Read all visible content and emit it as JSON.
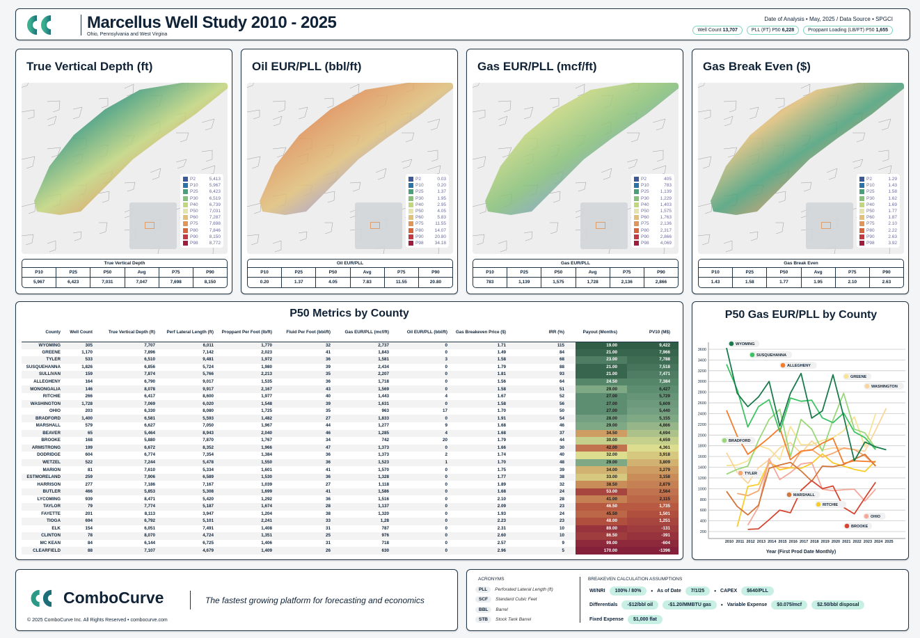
{
  "header": {
    "title": "Marcellus Well Study 2010 - 2025",
    "subtitle": "Ohio, Pennsylvania and West Virgina",
    "meta": "Date of Analysis • May, 2025 / Data Source • SPGCI",
    "pills": [
      {
        "label": "Well Count",
        "value": "13,707"
      },
      {
        "label": "PLL (FT)  P50",
        "value": "6,228"
      },
      {
        "label": "Proppant Loading (LB/FT)  P50",
        "value": "1,655"
      }
    ]
  },
  "legend_colors": [
    "#3d5a98",
    "#2a74a8",
    "#4aa07a",
    "#86c07a",
    "#c2d67e",
    "#e4e3ae",
    "#e0c07a",
    "#e0955a",
    "#d7653c",
    "#c03a44",
    "#a01c3c"
  ],
  "legend_labels": [
    "P2",
    "P10",
    "P25",
    "P30",
    "P40",
    "P50",
    "P60",
    "P75",
    "P80",
    "P90",
    "P98"
  ],
  "stat_headers": [
    "P10",
    "P25",
    "P50",
    "Avg",
    "P75",
    "P90"
  ],
  "maps": [
    {
      "title": "True Vertical Depth (ft)",
      "stats_title": "True Vertical Depth",
      "legend": [
        "5,413",
        "5,967",
        "6,423",
        "6,519",
        "6,739",
        "7,031",
        "7,287",
        "7,698",
        "7,846",
        "8,150",
        "8,772"
      ],
      "stats": [
        "5,967",
        "6,423",
        "7,031",
        "7,047",
        "7,698",
        "8,150"
      ]
    },
    {
      "title": "Oil EUR/PLL (bbl/ft)",
      "stats_title": "Oil EUR/PLL",
      "legend": [
        "0.03",
        "0.20",
        "1.37",
        "1.95",
        "2.95",
        "4.05",
        "5.83",
        "11.55",
        "14.07",
        "20.80",
        "34.18"
      ],
      "stats": [
        "0.20",
        "1.37",
        "4.05",
        "7.83",
        "11.55",
        "20.80"
      ]
    },
    {
      "title": "Gas EUR/PLL (mcf/ft)",
      "stats_title": "Gas EUR/PLL",
      "legend": [
        "405",
        "783",
        "1,139",
        "1,229",
        "1,403",
        "1,575",
        "1,763",
        "2,136",
        "2,317",
        "2,866",
        "4,069"
      ],
      "stats": [
        "783",
        "1,139",
        "1,575",
        "1,728",
        "2,136",
        "2,866"
      ]
    },
    {
      "title": "Gas Break Even ($)",
      "stats_title": "Gas Break Even",
      "legend": [
        "1.29",
        "1.43",
        "1.58",
        "1.62",
        "1.69",
        "1.77",
        "1.87",
        "2.10",
        "2.22",
        "2.63",
        "3.92"
      ],
      "stats": [
        "1.43",
        "1.58",
        "1.77",
        "1.95",
        "2.10",
        "2.63"
      ]
    }
  ],
  "county_table": {
    "title": "P50 Metrics by County",
    "headers": [
      "County",
      "Well Count",
      "True Vertical Depth (ft)",
      "Perf Lateral Length (ft)",
      "Proppant Per Foot (lb/ft)",
      "Fluid Per Foot (bbl/ft)",
      "Gas EUR/PLL (mcf/ft)",
      "Oil EUR/PLL (bbl/ft)",
      "Gas Breakeven Price ($)",
      "IRR (%)",
      "Payout (Months)",
      "PV10 (M$)"
    ],
    "rows": [
      [
        "WYOMING",
        "305",
        "7,707",
        "6,011",
        "1,770",
        "32",
        "2,737",
        "0",
        "1.71",
        "115",
        "19.00",
        "9,422"
      ],
      [
        "GREENE",
        "1,170",
        "7,896",
        "7,142",
        "2,023",
        "41",
        "1,843",
        "0",
        "1.49",
        "84",
        "21.00",
        "7,966"
      ],
      [
        "TYLER",
        "533",
        "6,510",
        "9,481",
        "1,972",
        "36",
        "1,581",
        "3",
        "1.58",
        "68",
        "23.00",
        "7,788"
      ],
      [
        "SUSQUEHANNA",
        "1,826",
        "6,856",
        "5,724",
        "1,980",
        "39",
        "2,434",
        "0",
        "1.79",
        "88",
        "21.00",
        "7,518"
      ],
      [
        "SULLIVAN",
        "159",
        "7,874",
        "5,766",
        "2,213",
        "35",
        "2,207",
        "0",
        "1.81",
        "93",
        "21.00",
        "7,471"
      ],
      [
        "ALLEGHENY",
        "164",
        "6,790",
        "9,017",
        "1,535",
        "36",
        "1,718",
        "0",
        "1.56",
        "64",
        "24.50",
        "7,384"
      ],
      [
        "MONONGALIA",
        "146",
        "8,078",
        "9,917",
        "2,167",
        "43",
        "1,569",
        "0",
        "1.58",
        "51",
        "29.00",
        "6,427"
      ],
      [
        "RITCHIE",
        "266",
        "6,417",
        "8,600",
        "1,977",
        "40",
        "1,443",
        "4",
        "1.67",
        "52",
        "27.00",
        "5,729"
      ],
      [
        "WASHINGTON",
        "1,728",
        "7,069",
        "6,020",
        "1,548",
        "39",
        "1,631",
        "0",
        "1.58",
        "56",
        "27.00",
        "5,609"
      ],
      [
        "OHIO",
        "203",
        "6,330",
        "8,080",
        "1,725",
        "35",
        "963",
        "17",
        "1.70",
        "50",
        "27.00",
        "5,440"
      ],
      [
        "BRADFORD",
        "1,400",
        "6,581",
        "5,593",
        "1,482",
        "27",
        "1,833",
        "0",
        "1.91",
        "54",
        "28.00",
        "5,155"
      ],
      [
        "MARSHALL",
        "579",
        "6,627",
        "7,050",
        "1,967",
        "44",
        "1,277",
        "9",
        "1.68",
        "46",
        "29.00",
        "4,866"
      ],
      [
        "BEAVER",
        "65",
        "5,464",
        "8,943",
        "2,040",
        "46",
        "1,285",
        "4",
        "1.68",
        "37",
        "34.50",
        "4,694"
      ],
      [
        "BROOKE",
        "168",
        "5,880",
        "7,870",
        "1,767",
        "34",
        "742",
        "20",
        "1.79",
        "44",
        "30.00",
        "4,659"
      ],
      [
        "ARMSTRONG",
        "199",
        "6,672",
        "8,352",
        "1,966",
        "47",
        "1,373",
        "0",
        "1.66",
        "30",
        "42.00",
        "4,361"
      ],
      [
        "DODRIDGE",
        "604",
        "6,774",
        "7,354",
        "1,384",
        "36",
        "1,373",
        "2",
        "1.74",
        "40",
        "32.00",
        "3,918"
      ],
      [
        "WETZEL",
        "522",
        "7,244",
        "5,478",
        "1,550",
        "36",
        "1,523",
        "1",
        "1.70",
        "48",
        "29.00",
        "3,809"
      ],
      [
        "MARION",
        "81",
        "7,610",
        "5,334",
        "1,601",
        "41",
        "1,570",
        "0",
        "1.75",
        "39",
        "34.00",
        "3,279"
      ],
      [
        "ESTMORELAND",
        "259",
        "7,906",
        "6,589",
        "1,530",
        "36",
        "1,328",
        "0",
        "1.77",
        "38",
        "33.00",
        "3,158"
      ],
      [
        "HARRISON",
        "277",
        "7,186",
        "7,167",
        "1,039",
        "27",
        "1,118",
        "0",
        "1.89",
        "32",
        "38.50",
        "2,879"
      ],
      [
        "BUTLER",
        "466",
        "5,853",
        "5,308",
        "1,699",
        "41",
        "1,586",
        "0",
        "1.68",
        "24",
        "53.00",
        "2,564"
      ],
      [
        "LYCOMING",
        "939",
        "8,471",
        "5,420",
        "1,292",
        "36",
        "1,516",
        "0",
        "2.10",
        "28",
        "41.00",
        "2,115"
      ],
      [
        "TAYLOR",
        "79",
        "7,774",
        "5,187",
        "1,674",
        "28",
        "1,137",
        "0",
        "2.09",
        "23",
        "46.50",
        "1,735"
      ],
      [
        "FAYETTE",
        "201",
        "8,113",
        "3,947",
        "1,204",
        "38",
        "1,320",
        "0",
        "1.93",
        "24",
        "45.50",
        "1,501"
      ],
      [
        "TIOGA",
        "694",
        "6,792",
        "5,101",
        "2,241",
        "33",
        "1,28",
        "0",
        "2.23",
        "23",
        "48.00",
        "1,251"
      ],
      [
        "ELK",
        "154",
        "6,051",
        "7,491",
        "1,408",
        "31",
        "787",
        "0",
        "2.31",
        "10",
        "89.00",
        "-131"
      ],
      [
        "CLINTON",
        "78",
        "8,070",
        "4,724",
        "1,351",
        "25",
        "976",
        "0",
        "2.60",
        "10",
        "86.50",
        "-391"
      ],
      [
        "MC KEAN",
        "84",
        "6,144",
        "6,725",
        "1,406",
        "31",
        "718",
        "0",
        "2.57",
        "9",
        "99.00",
        "-604"
      ],
      [
        "CLEARFIELD",
        "88",
        "7,107",
        "4,679",
        "1,409",
        "26",
        "630",
        "0",
        "2.96",
        "5",
        "170.00",
        "-1396"
      ]
    ]
  },
  "chart_data": {
    "type": "line",
    "title": "P50 Gas EUR/PLL by County",
    "xlabel": "Year (First Prod Date Monthly)",
    "ylabel": "",
    "x": [
      2010,
      2011,
      2012,
      2013,
      2014,
      2015,
      2016,
      2017,
      2018,
      2019,
      2020,
      2021,
      2022,
      2023,
      2024,
      2025
    ],
    "yticks": [
      200,
      400,
      600,
      800,
      1000,
      1200,
      1400,
      1600,
      1800,
      2000,
      2200,
      2400,
      2600,
      2800,
      3000,
      3200,
      3400,
      3600
    ],
    "ylim": [
      100,
      3750
    ],
    "grid": true,
    "series": [
      {
        "name": "WYOMING",
        "color": "#1a7a4c",
        "values": [
          3625,
          2780,
          2530,
          2710,
          3000,
          2165,
          2780,
          3150,
          2315,
          2450,
          3125,
          2350,
          1520,
          1870,
          1780,
          1725
        ]
      },
      {
        "name": "SUSQUEHANNA",
        "color": "#3cc464",
        "values": [
          3320,
          2850,
          2150,
          2530,
          2660,
          2060,
          2690,
          2630,
          2650,
          2320,
          2230,
          2410,
          2060,
          1950,
          1730,
          null
        ]
      },
      {
        "name": "ALLEGHENY",
        "color": "#f47c2c",
        "values": [
          2460,
          1980,
          1640,
          1790,
          1950,
          2130,
          1540,
          1700,
          1720,
          1850,
          1940,
          1470,
          1520,
          1510,
          1500,
          null
        ]
      },
      {
        "name": "GREENE",
        "color": "#f7e394",
        "values": [
          1430,
          1440,
          1520,
          1800,
          1740,
          1540,
          2160,
          1820,
          1820,
          1900,
          1950,
          2080,
          2340,
          1780,
          2400,
          null
        ]
      },
      {
        "name": "WASHINGTON",
        "color": "#fad49a",
        "values": [
          1670,
          1300,
          1100,
          1390,
          1540,
          1760,
          1860,
          1660,
          1890,
          1720,
          1760,
          1750,
          1730,
          1700,
          2090,
          2500
        ]
      },
      {
        "name": "BRADFORD",
        "color": "#9ad77a",
        "values": [
          1270,
          1360,
          1420,
          1900,
          2290,
          2480,
          1600,
          2290,
          2110,
          1700,
          2280,
          2780,
          2110,
          2040,
          1750,
          null
        ]
      },
      {
        "name": "TYLER",
        "color": "#f6a66e",
        "values": [
          null,
          910,
          870,
          960,
          1480,
          1400,
          1390,
          1700,
          1730,
          1590,
          1660,
          1760,
          1730,
          1610,
          1430,
          null
        ]
      },
      {
        "name": "MARSHALL",
        "color": "#d2763a",
        "values": [
          950,
          670,
          510,
          690,
          1380,
          1440,
          1490,
          1330,
          1140,
          1420,
          1410,
          1450,
          1550,
          1640,
          1420,
          null
        ]
      },
      {
        "name": "RITCHIE",
        "color": "#f8cc2a",
        "values": [
          null,
          290,
          1040,
          1080,
          1500,
          1350,
          1390,
          1380,
          1470,
          1650,
          1480,
          1420,
          1360,
          1320,
          1520,
          null
        ]
      },
      {
        "name": "OHIO",
        "color": "#f5a89a",
        "values": [
          null,
          null,
          320,
          660,
          1560,
          1170,
          1300,
          1460,
          1490,
          990,
          960,
          980,
          990,
          770,
          990,
          null
        ]
      },
      {
        "name": "BROOKE",
        "color": "#d54530",
        "values": [
          null,
          null,
          240,
          250,
          420,
          600,
          550,
          970,
          1150,
          1000,
          1050,
          650,
          530,
          830,
          1120,
          null
        ]
      }
    ]
  },
  "footer": {
    "brand": "ComboCurve",
    "tagline": "The fastest growing platform for forecasting and economics",
    "copyright": "© 2025 ComboCurve Inc. All Rights Reserved • combocurve.com",
    "acronyms_title": "ACRONYMS",
    "acronyms": [
      {
        "tag": "PLL",
        "text": "Perforated Lateral Length (ft)"
      },
      {
        "tag": "SCF",
        "text": "Standard Cubic Feet"
      },
      {
        "tag": "BBL",
        "text": "Barrel"
      },
      {
        "tag": "STB",
        "text": "Stock Tank Barrel"
      }
    ],
    "assumptions_title": "BREAKEVEN CALCULATION ASSUMPTIONS",
    "wi_label": "WI/NRI",
    "wi": "100% / 80%",
    "date_label": "As of Date",
    "date": "7/1/25",
    "capex_label": "CAPEX",
    "capex": "$640/PLL",
    "diff_label": "Differentials",
    "diff_oil": "-$12/bbl oil",
    "diff_gas": "-$1.20/MMBTU gas",
    "var_label": "Variable Expense",
    "var_mcf": "$0.075/mcf",
    "var_bbl": "$2.50/bbl disposal",
    "fixed_label": "Fixed Expense",
    "fixed": "$1,000 flat"
  }
}
